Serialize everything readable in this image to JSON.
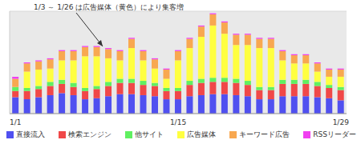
{
  "chart_data": {
    "type": "bar",
    "stacked": true,
    "grid": true,
    "legend": "bottom",
    "tick_labels": "x",
    "annotation": "1/3 ～ 1/26 は広告媒体（黄色）により集客増",
    "categories": [
      "1/1",
      null,
      null,
      null,
      null,
      null,
      null,
      null,
      null,
      null,
      null,
      null,
      null,
      null,
      "1/15",
      null,
      null,
      null,
      null,
      null,
      null,
      null,
      null,
      null,
      null,
      null,
      null,
      null,
      "1/29"
    ],
    "ylim": [
      0,
      100
    ],
    "yticks": [
      0,
      10,
      20,
      30,
      40,
      50,
      60,
      70,
      80,
      90,
      100
    ],
    "series": [
      {
        "name": "直接流入",
        "color": "#5050f0",
        "values": [
          16,
          14,
          16,
          18,
          20,
          18,
          14,
          15,
          17,
          19,
          19,
          18,
          17,
          14,
          14,
          17,
          18,
          19,
          19,
          18,
          17,
          14,
          14,
          17,
          17,
          17,
          16,
          15,
          13
        ]
      },
      {
        "name": "検索エンジン",
        "color": "#f04848",
        "values": [
          6,
          8,
          8,
          9,
          9,
          8,
          8,
          9,
          10,
          11,
          11,
          10,
          10,
          8,
          8,
          11,
          12,
          12,
          12,
          12,
          11,
          9,
          9,
          12,
          12,
          12,
          11,
          10,
          10
        ]
      },
      {
        "name": "他サイト",
        "color": "#60f060",
        "values": [
          4,
          3,
          3,
          4,
          4,
          4,
          3,
          3,
          4,
          4,
          4,
          4,
          3,
          3,
          3,
          4,
          4,
          4,
          4,
          4,
          4,
          3,
          3,
          4,
          4,
          4,
          4,
          3,
          3
        ]
      },
      {
        "name": "広告媒体",
        "color": "#ffff40",
        "values": [
          0,
          16,
          16,
          13,
          19,
          22,
          31,
          29,
          23,
          18,
          30,
          20,
          14,
          9,
          27,
          32,
          41,
          51,
          43,
          33,
          35,
          38,
          38,
          19,
          16,
          16,
          10,
          8,
          10
        ]
      },
      {
        "name": "キーワード広告",
        "color": "#f8a850",
        "values": [
          8,
          8,
          8,
          9,
          9,
          9,
          9,
          9,
          9,
          9,
          9,
          9,
          9,
          9,
          9,
          9,
          10,
          11,
          11,
          10,
          10,
          9,
          9,
          9,
          8,
          8,
          8,
          7,
          7
        ]
      },
      {
        "name": "RSSリーダー",
        "color": "#f040f0",
        "values": [
          2,
          1,
          1,
          1,
          1,
          1,
          1,
          1,
          1,
          1,
          1,
          1,
          1,
          1,
          1,
          1,
          1,
          1,
          1,
          1,
          1,
          1,
          1,
          1,
          1,
          1,
          1,
          1,
          1
        ]
      }
    ]
  }
}
